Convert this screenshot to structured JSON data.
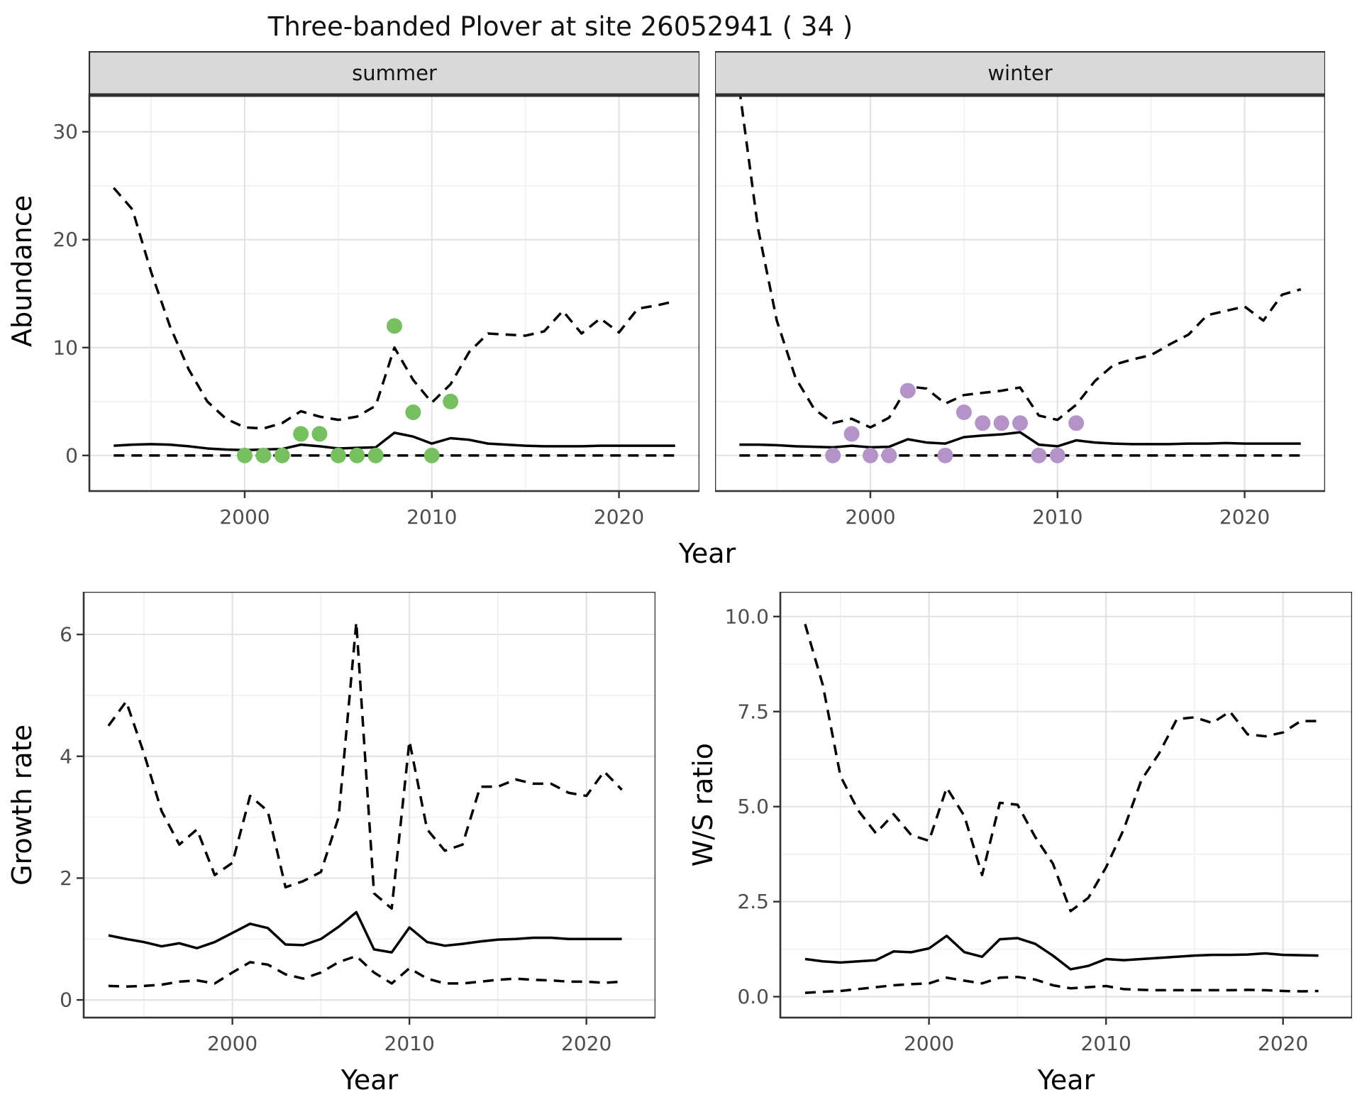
{
  "title": "Three-banded Plover at site 26052941 ( 34 )",
  "labels": {
    "abundance": "Abundance",
    "growth_rate": "Growth rate",
    "ws_ratio": "W/S ratio",
    "year": "Year"
  },
  "facets": [
    "summer",
    "winter"
  ],
  "colors": {
    "line": "#000000",
    "summer_points": "#76C05F",
    "winter_points": "#B493C8",
    "strip_bg": "#D9D9D9",
    "strip_border": "#333333",
    "panel_border": "#333333",
    "panel_bg": "#FFFFFF",
    "grid_major": "#E3E3E3",
    "grid_minor": "#F1F1F1",
    "axis_text": "#4D4D4D"
  },
  "chart_data": [
    {
      "id": "abundance-summer",
      "type": "line",
      "facet_label": "summer",
      "xlabel": "Year",
      "ylabel": "Abundance",
      "xlim": [
        1991.7,
        2024.3
      ],
      "ylim": [
        -3.3,
        33.4
      ],
      "xticks": {
        "values": [
          2000,
          2010,
          2020
        ],
        "labels": [
          "2000",
          "2010",
          "2020"
        ]
      },
      "xminor": [
        1995,
        2005,
        2015
      ],
      "yticks": {
        "values": [
          0,
          10,
          20,
          30
        ],
        "labels": [
          "0",
          "10",
          "20",
          "30"
        ]
      },
      "yminor": [
        5,
        15,
        25
      ],
      "x": [
        1993,
        1994,
        1995,
        1996,
        1997,
        1998,
        1999,
        2000,
        2001,
        2002,
        2003,
        2004,
        2005,
        2006,
        2007,
        2008,
        2009,
        2010,
        2011,
        2012,
        2013,
        2014,
        2015,
        2016,
        2017,
        2018,
        2019,
        2020,
        2021,
        2022,
        2023
      ],
      "series": [
        {
          "name": "upper-ci",
          "style": "dashed",
          "values": [
            24.8,
            22.8,
            17.0,
            12.0,
            8.0,
            5.0,
            3.4,
            2.6,
            2.5,
            3.0,
            4.1,
            3.6,
            3.3,
            3.6,
            4.6,
            10.0,
            7.0,
            4.9,
            6.6,
            9.6,
            11.3,
            11.2,
            11.1,
            11.5,
            13.4,
            11.3,
            12.7,
            11.4,
            13.6,
            13.9,
            14.3
          ]
        },
        {
          "name": "median",
          "style": "solid",
          "values": [
            0.9,
            1.0,
            1.05,
            1.0,
            0.85,
            0.65,
            0.55,
            0.5,
            0.55,
            0.6,
            1.0,
            0.85,
            0.65,
            0.7,
            0.75,
            2.1,
            1.75,
            1.1,
            1.6,
            1.45,
            1.1,
            1.0,
            0.9,
            0.85,
            0.85,
            0.85,
            0.9,
            0.9,
            0.9,
            0.9,
            0.9
          ]
        },
        {
          "name": "lower-ci",
          "style": "dashed",
          "values": [
            0,
            0,
            0,
            0,
            0,
            0,
            0,
            0,
            0,
            0,
            0,
            0,
            0,
            0,
            0,
            0,
            0,
            0,
            0,
            0,
            0,
            0,
            0,
            0,
            0,
            0,
            0,
            0,
            0,
            0,
            0
          ]
        }
      ],
      "observations": {
        "name": "observed-counts",
        "color": "#76C05F",
        "points": [
          [
            2000,
            0
          ],
          [
            2001,
            0
          ],
          [
            2002,
            0
          ],
          [
            2003,
            2
          ],
          [
            2004,
            2
          ],
          [
            2005,
            0
          ],
          [
            2006,
            0
          ],
          [
            2007,
            0
          ],
          [
            2008,
            12
          ],
          [
            2009,
            4
          ],
          [
            2010,
            0
          ],
          [
            2011,
            5
          ]
        ]
      }
    },
    {
      "id": "abundance-winter",
      "type": "line",
      "facet_label": "winter",
      "xlabel": "Year",
      "ylabel": "Abundance",
      "xlim": [
        1991.7,
        2024.3
      ],
      "ylim": [
        -3.3,
        33.4
      ],
      "xticks": {
        "values": [
          2000,
          2010,
          2020
        ],
        "labels": [
          "2000",
          "2010",
          "2020"
        ]
      },
      "xminor": [
        1995,
        2005,
        2015
      ],
      "yticks": {
        "values": [
          0,
          10,
          20,
          30
        ],
        "labels": [
          "0",
          "10",
          "20",
          "30"
        ]
      },
      "yminor": [
        5,
        15,
        25
      ],
      "show_y_labels": false,
      "x": [
        1993,
        1994,
        1995,
        1996,
        1997,
        1998,
        1999,
        2000,
        2001,
        2002,
        2003,
        2004,
        2005,
        2006,
        2007,
        2008,
        2009,
        2010,
        2011,
        2012,
        2013,
        2014,
        2015,
        2016,
        2017,
        2018,
        2019,
        2020,
        2021,
        2022,
        2023
      ],
      "series": [
        {
          "name": "upper-ci",
          "style": "dashed",
          "values": [
            34,
            21,
            12.5,
            7.2,
            4.3,
            3.0,
            3.4,
            2.6,
            3.5,
            6.4,
            6.2,
            4.8,
            5.6,
            5.8,
            6.0,
            6.3,
            3.7,
            3.3,
            4.7,
            6.9,
            8.4,
            8.9,
            9.3,
            10.3,
            11.2,
            13.0,
            13.4,
            13.8,
            12.5,
            14.9,
            15.4
          ]
        },
        {
          "name": "median",
          "style": "solid",
          "values": [
            1.0,
            1.0,
            0.95,
            0.85,
            0.8,
            0.75,
            0.9,
            0.75,
            0.8,
            1.5,
            1.2,
            1.1,
            1.7,
            1.85,
            1.95,
            2.15,
            1.0,
            0.85,
            1.4,
            1.2,
            1.1,
            1.05,
            1.05,
            1.05,
            1.1,
            1.1,
            1.15,
            1.1,
            1.1,
            1.1,
            1.1
          ]
        },
        {
          "name": "lower-ci",
          "style": "dashed",
          "values": [
            0,
            0,
            0,
            0,
            0,
            0,
            0,
            0,
            0,
            0,
            0,
            0,
            0,
            0,
            0,
            0,
            0,
            0,
            0,
            0,
            0,
            0,
            0,
            0,
            0,
            0,
            0,
            0,
            0,
            0,
            0
          ]
        }
      ],
      "observations": {
        "name": "observed-counts",
        "color": "#B493C8",
        "points": [
          [
            1998,
            0
          ],
          [
            1999,
            2
          ],
          [
            2000,
            0
          ],
          [
            2001,
            0
          ],
          [
            2002,
            6
          ],
          [
            2004,
            0
          ],
          [
            2005,
            4
          ],
          [
            2006,
            3
          ],
          [
            2007,
            3
          ],
          [
            2008,
            3
          ],
          [
            2009,
            0
          ],
          [
            2010,
            0
          ],
          [
            2011,
            3
          ]
        ]
      }
    },
    {
      "id": "growth-rate",
      "type": "line",
      "xlabel": "Year",
      "ylabel": "Growth rate",
      "xlim": [
        1991.6,
        2023.9
      ],
      "ylim": [
        -0.29,
        6.7
      ],
      "xticks": {
        "values": [
          2000,
          2010,
          2020
        ],
        "labels": [
          "2000",
          "2010",
          "2020"
        ]
      },
      "xminor": [
        1995,
        2005,
        2015
      ],
      "yticks": {
        "values": [
          0,
          2,
          4,
          6
        ],
        "labels": [
          "0",
          "2",
          "4",
          "6"
        ]
      },
      "yminor": [
        1,
        3,
        5
      ],
      "x": [
        1993,
        1994,
        1995,
        1996,
        1997,
        1998,
        1999,
        2000,
        2001,
        2002,
        2003,
        2004,
        2005,
        2006,
        2007,
        2008,
        2009,
        2010,
        2011,
        2012,
        2013,
        2014,
        2015,
        2016,
        2017,
        2018,
        2019,
        2020,
        2021,
        2022
      ],
      "series": [
        {
          "name": "upper-ci",
          "style": "dashed",
          "values": [
            4.5,
            4.9,
            4.05,
            3.1,
            2.55,
            2.8,
            2.05,
            2.25,
            3.35,
            3.1,
            1.85,
            1.95,
            2.1,
            3.0,
            6.2,
            1.75,
            1.5,
            4.25,
            2.8,
            2.45,
            2.55,
            3.5,
            3.5,
            3.62,
            3.55,
            3.55,
            3.4,
            3.35,
            3.75,
            3.45
          ]
        },
        {
          "name": "median",
          "style": "solid",
          "values": [
            1.06,
            1.0,
            0.95,
            0.88,
            0.93,
            0.85,
            0.95,
            1.1,
            1.25,
            1.18,
            0.91,
            0.9,
            1.0,
            1.2,
            1.44,
            0.83,
            0.78,
            1.19,
            0.95,
            0.89,
            0.92,
            0.96,
            0.99,
            1.0,
            1.02,
            1.02,
            1.0,
            1.0,
            1.0,
            1.0
          ]
        },
        {
          "name": "lower-ci",
          "style": "dashed",
          "values": [
            0.23,
            0.22,
            0.23,
            0.25,
            0.3,
            0.32,
            0.27,
            0.45,
            0.62,
            0.58,
            0.42,
            0.35,
            0.45,
            0.62,
            0.72,
            0.45,
            0.27,
            0.52,
            0.35,
            0.27,
            0.27,
            0.3,
            0.33,
            0.35,
            0.33,
            0.32,
            0.3,
            0.3,
            0.28,
            0.3
          ]
        }
      ]
    },
    {
      "id": "ws-ratio",
      "type": "line",
      "xlabel": "Year",
      "ylabel": "W/S ratio",
      "xlim": [
        1991.6,
        2023.9
      ],
      "ylim": [
        -0.55,
        10.65
      ],
      "xticks": {
        "values": [
          2000,
          2010,
          2020
        ],
        "labels": [
          "2000",
          "2010",
          "2020"
        ]
      },
      "xminor": [
        1995,
        2005,
        2015
      ],
      "yticks": {
        "values": [
          0,
          2.5,
          5,
          7.5,
          10
        ],
        "labels": [
          "0.0",
          "2.5",
          "5.0",
          "7.5",
          "10.0"
        ]
      },
      "yminor": [
        1.25,
        3.75,
        6.25,
        8.75
      ],
      "x": [
        1993,
        1994,
        1995,
        1996,
        1997,
        1998,
        1999,
        2000,
        2001,
        2002,
        2003,
        2004,
        2005,
        2006,
        2007,
        2008,
        2009,
        2010,
        2011,
        2012,
        2013,
        2014,
        2015,
        2016,
        2017,
        2018,
        2019,
        2020,
        2021,
        2022
      ],
      "series": [
        {
          "name": "upper-ci",
          "style": "dashed",
          "values": [
            9.8,
            8.2,
            5.8,
            4.9,
            4.3,
            4.8,
            4.25,
            4.1,
            5.5,
            4.75,
            3.2,
            5.1,
            5.05,
            4.2,
            3.5,
            2.25,
            2.6,
            3.4,
            4.4,
            5.7,
            6.4,
            7.3,
            7.35,
            7.2,
            7.5,
            6.9,
            6.85,
            6.95,
            7.25,
            7.25
          ]
        },
        {
          "name": "median",
          "style": "solid",
          "values": [
            0.99,
            0.93,
            0.9,
            0.93,
            0.96,
            1.19,
            1.17,
            1.27,
            1.6,
            1.17,
            1.05,
            1.51,
            1.54,
            1.39,
            1.08,
            0.72,
            0.81,
            0.99,
            0.96,
            0.99,
            1.02,
            1.05,
            1.08,
            1.1,
            1.1,
            1.11,
            1.14,
            1.1,
            1.09,
            1.08
          ]
        },
        {
          "name": "lower-ci",
          "style": "dashed",
          "values": [
            0.1,
            0.13,
            0.15,
            0.2,
            0.25,
            0.3,
            0.33,
            0.35,
            0.5,
            0.42,
            0.35,
            0.5,
            0.52,
            0.45,
            0.3,
            0.22,
            0.25,
            0.28,
            0.2,
            0.18,
            0.17,
            0.17,
            0.17,
            0.17,
            0.17,
            0.18,
            0.17,
            0.15,
            0.14,
            0.15
          ]
        }
      ]
    }
  ]
}
